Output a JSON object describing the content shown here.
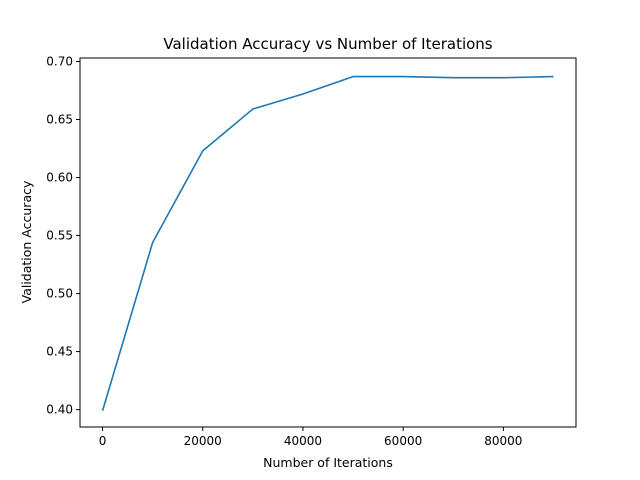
{
  "chart_data": {
    "type": "line",
    "title": "Validation Accuracy vs Number of Iterations",
    "xlabel": "Number of Iterations",
    "ylabel": "Validation Accuracy",
    "xlim": [
      -4500,
      94500
    ],
    "ylim": [
      0.385,
      0.703
    ],
    "x_ticks": [
      0,
      20000,
      40000,
      60000,
      80000
    ],
    "x_tick_labels": [
      "0",
      "20000",
      "40000",
      "60000",
      "80000"
    ],
    "y_ticks": [
      0.4,
      0.45,
      0.5,
      0.55,
      0.6,
      0.65,
      0.7
    ],
    "y_tick_labels": [
      "0.40",
      "0.45",
      "0.50",
      "0.55",
      "0.60",
      "0.65",
      "0.70"
    ],
    "grid": false,
    "series": [
      {
        "color": "#1f77b4",
        "x": [
          0,
          10000,
          20000,
          30000,
          40000,
          50000,
          60000,
          70000,
          80000,
          90000
        ],
        "y": [
          0.399,
          0.544,
          0.623,
          0.659,
          0.672,
          0.687,
          0.687,
          0.686,
          0.686,
          0.687
        ]
      }
    ]
  }
}
